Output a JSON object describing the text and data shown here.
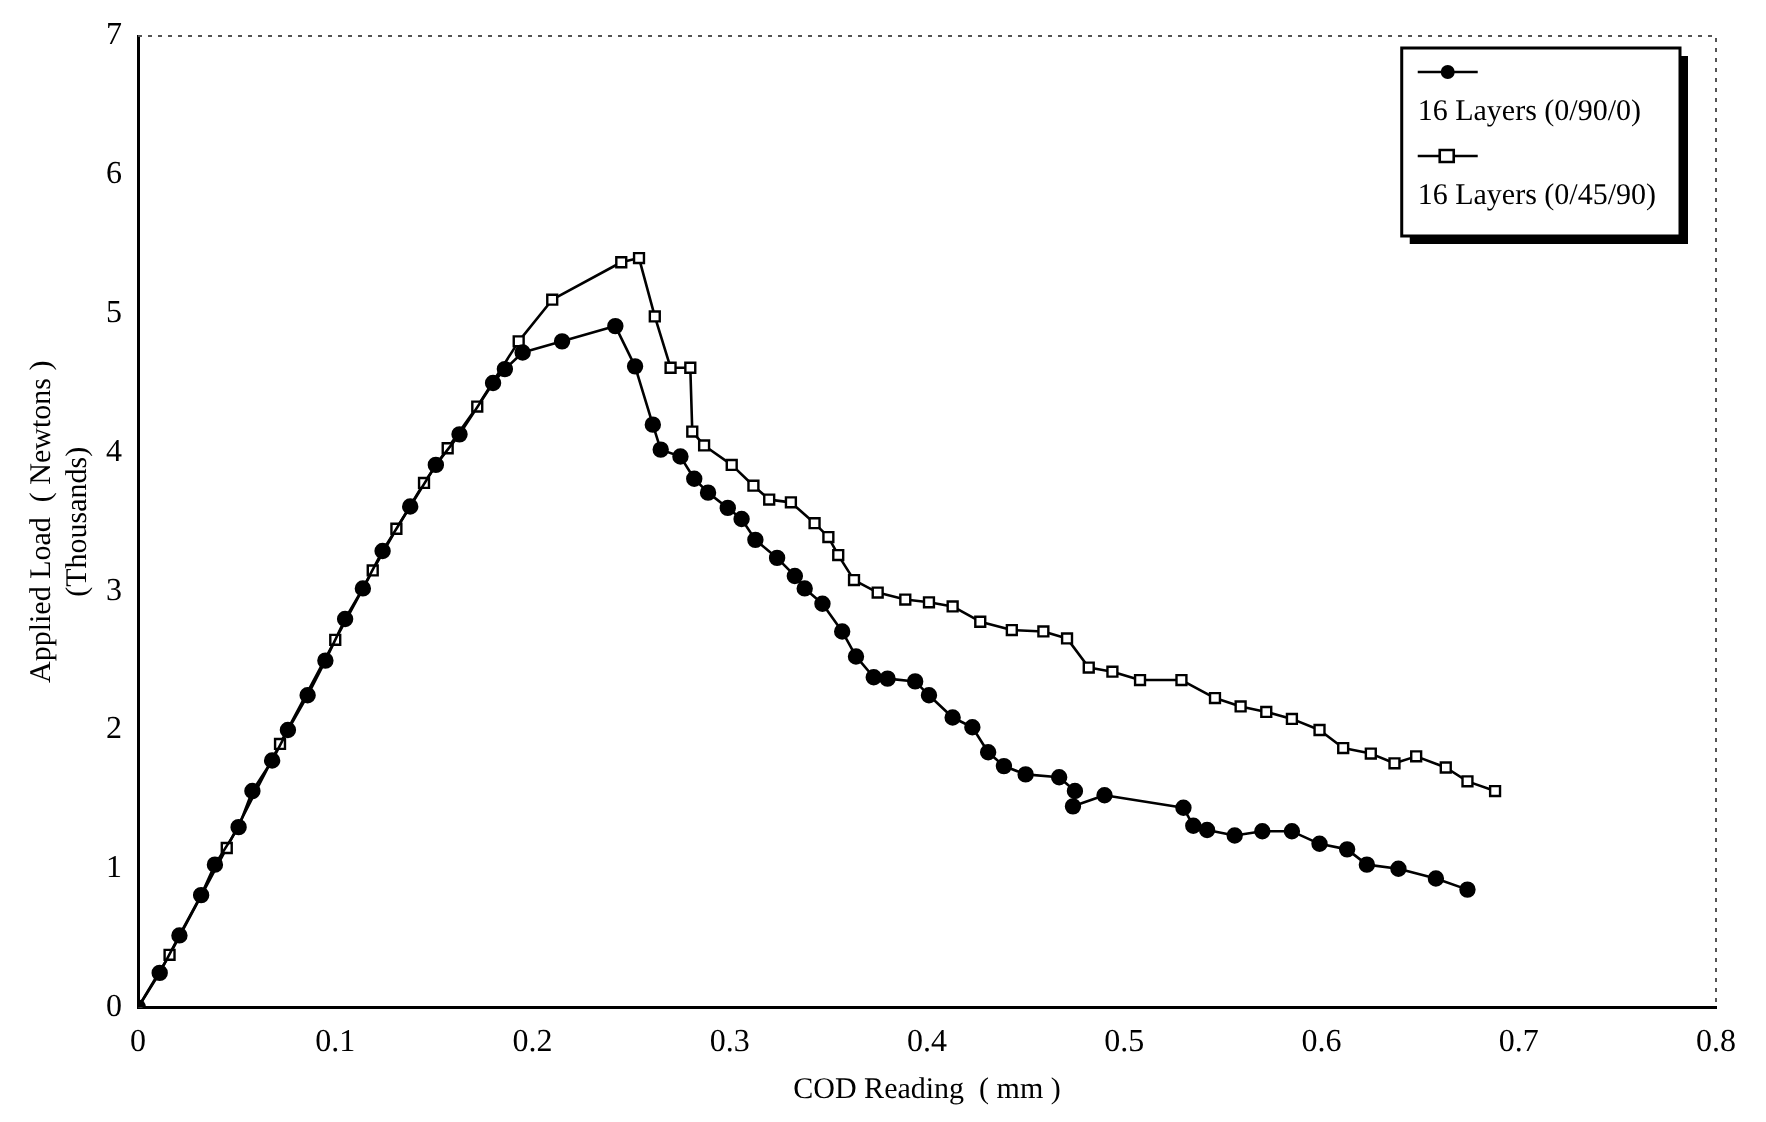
{
  "chart_data": {
    "type": "line",
    "xlabel": "COD Reading  ( mm )",
    "ylabel": "Applied Load  ( Newtons )\n(Thousands)",
    "xlim": [
      0,
      0.8
    ],
    "xticks": [
      0,
      0.1,
      0.2,
      0.3,
      0.4,
      0.5,
      0.6,
      0.7,
      0.8
    ],
    "ylim": [
      0,
      7
    ],
    "yticks": [
      0,
      1,
      2,
      3,
      4,
      5,
      6,
      7
    ],
    "grid": false,
    "legend": "top right",
    "line_style": "solid",
    "series": [
      {
        "name": "16 Layers (0/90/0)",
        "color": "#000000",
        "marker": "circle",
        "x": [
          0,
          0.011,
          0.021,
          0.032,
          0.039,
          0.051,
          0.058,
          0.068,
          0.076,
          0.086,
          0.095,
          0.105,
          0.114,
          0.124,
          0.138,
          0.151,
          0.163,
          0.18,
          0.186,
          0.195,
          0.215,
          0.242,
          0.252,
          0.261,
          0.265,
          0.275,
          0.282,
          0.289,
          0.299,
          0.306,
          0.313,
          0.324,
          0.333,
          0.338,
          0.347,
          0.357,
          0.364,
          0.373,
          0.38,
          0.394,
          0.401,
          0.413,
          0.423,
          0.431,
          0.439,
          0.45,
          0.467,
          0.475,
          0.474,
          0.49,
          0.53,
          0.535,
          0.542,
          0.556,
          0.57,
          0.585,
          0.599,
          0.613,
          0.623,
          0.639,
          0.658,
          0.674
        ],
        "values": [
          0,
          0.25,
          0.52,
          0.81,
          1.03,
          1.3,
          1.56,
          1.78,
          2.0,
          2.25,
          2.5,
          2.8,
          3.02,
          3.29,
          3.61,
          3.91,
          4.13,
          4.5,
          4.6,
          4.72,
          4.8,
          4.91,
          4.62,
          4.2,
          4.02,
          3.97,
          3.81,
          3.71,
          3.6,
          3.52,
          3.37,
          3.24,
          3.11,
          3.02,
          2.91,
          2.71,
          2.53,
          2.38,
          2.37,
          2.35,
          2.25,
          2.09,
          2.02,
          1.84,
          1.74,
          1.68,
          1.66,
          1.56,
          1.45,
          1.53,
          1.44,
          1.31,
          1.28,
          1.24,
          1.27,
          1.27,
          1.18,
          1.14,
          1.03,
          1.0,
          0.93,
          0.85
        ]
      },
      {
        "name": "16 Layers (0/45/90)",
        "color": "#000000",
        "marker": "square",
        "x": [
          0,
          0.016,
          0.045,
          0.072,
          0.1,
          0.119,
          0.131,
          0.145,
          0.157,
          0.172,
          0.193,
          0.21,
          0.245,
          0.254,
          0.262,
          0.27,
          0.28,
          0.281,
          0.287,
          0.301,
          0.312,
          0.32,
          0.331,
          0.343,
          0.35,
          0.355,
          0.363,
          0.375,
          0.389,
          0.401,
          0.413,
          0.427,
          0.443,
          0.459,
          0.471,
          0.482,
          0.494,
          0.508,
          0.529,
          0.546,
          0.559,
          0.572,
          0.585,
          0.599,
          0.611,
          0.625,
          0.637,
          0.648,
          0.663,
          0.674,
          0.688
        ],
        "values": [
          0,
          0.38,
          1.15,
          1.9,
          2.65,
          3.15,
          3.45,
          3.78,
          4.03,
          4.33,
          4.8,
          5.1,
          5.37,
          5.4,
          4.98,
          4.61,
          4.61,
          4.15,
          4.05,
          3.91,
          3.76,
          3.66,
          3.64,
          3.49,
          3.39,
          3.26,
          3.08,
          2.99,
          2.94,
          2.92,
          2.89,
          2.78,
          2.72,
          2.71,
          2.66,
          2.45,
          2.42,
          2.36,
          2.36,
          2.23,
          2.17,
          2.13,
          2.08,
          2.0,
          1.87,
          1.83,
          1.76,
          1.81,
          1.73,
          1.63,
          1.56
        ]
      }
    ]
  }
}
